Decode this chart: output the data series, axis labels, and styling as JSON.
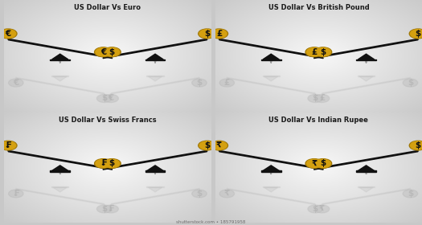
{
  "panels": [
    {
      "title": "US Dollar Vs Euro",
      "left_symbol": "€",
      "right_symbol": "$"
    },
    {
      "title": "US Dollar Vs British Pound",
      "left_symbol": "£",
      "right_symbol": "$"
    },
    {
      "title": "US Dollar Vs Swiss Francs",
      "left_symbol": "₣",
      "right_symbol": "$"
    },
    {
      "title": "US Dollar Vs Indian Rupee",
      "left_symbol": "₹",
      "right_symbol": "$"
    }
  ],
  "bg_gradient_light": "#f5f5f5",
  "bg_gradient_dark": "#c8c8c8",
  "bg_panel_light": "#f8f8f8",
  "bg_panel_mid": "#e8e8e8",
  "coin_gold": "#D4A010",
  "coin_gold_rim": "#A07808",
  "coin_text": "#111111",
  "beam_color": "#111111",
  "triangle_color": "#111111",
  "reflect_color": "#bbbbbb",
  "title_fontsize": 6.0,
  "symbol_fontsize": 7.5,
  "arrow_color": "#999999",
  "watermark": "shutterstock.com • 185791958"
}
